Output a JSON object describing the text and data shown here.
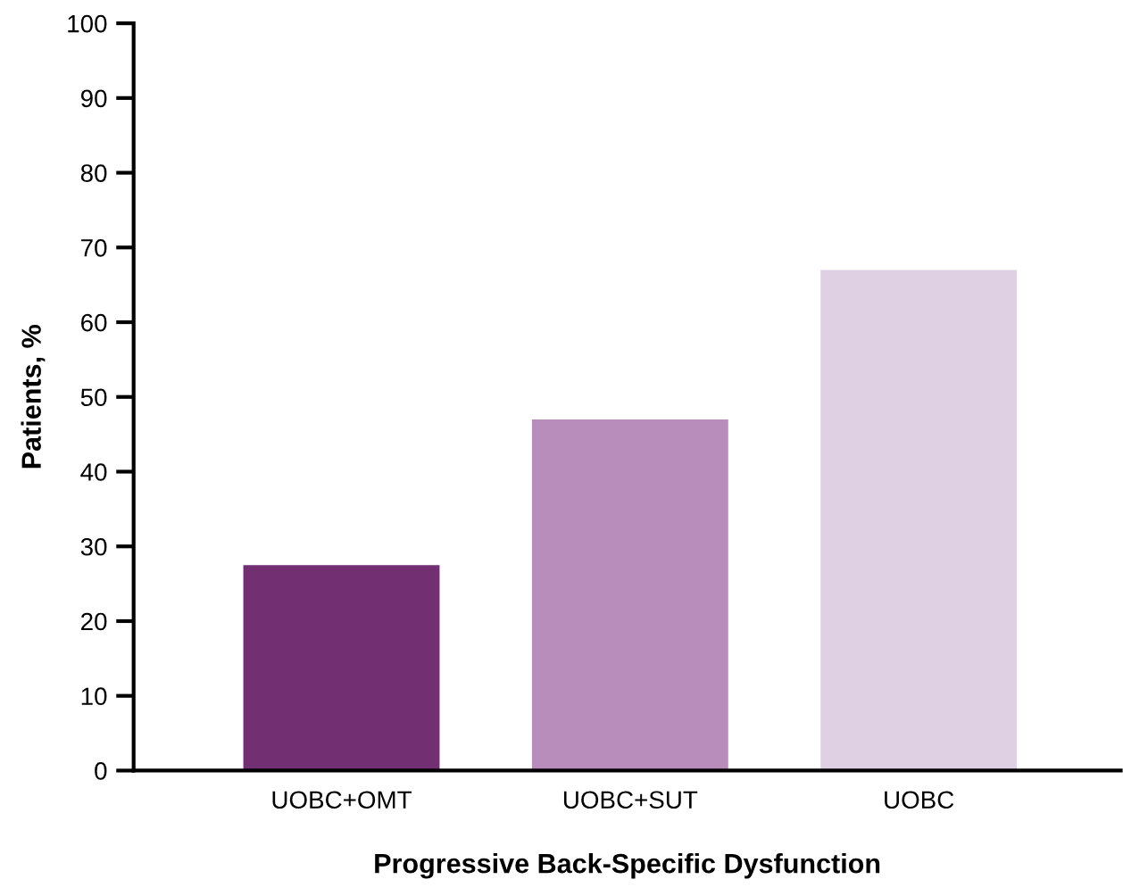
{
  "chart_data": {
    "type": "bar",
    "xlabel": "Progressive Back-Specific Dysfunction",
    "ylabel": "Patients, %",
    "categories": [
      "UOBC+OMT",
      "UOBC+SUT",
      "UOBC"
    ],
    "values": [
      27.5,
      47,
      67
    ],
    "colors": [
      "#722f72",
      "#b88cbb",
      "#e0d0e3"
    ],
    "ylim": [
      0,
      100
    ],
    "yticks": [
      0,
      10,
      20,
      30,
      40,
      50,
      60,
      70,
      80,
      90,
      100
    ],
    "grid": false,
    "legend": false
  }
}
